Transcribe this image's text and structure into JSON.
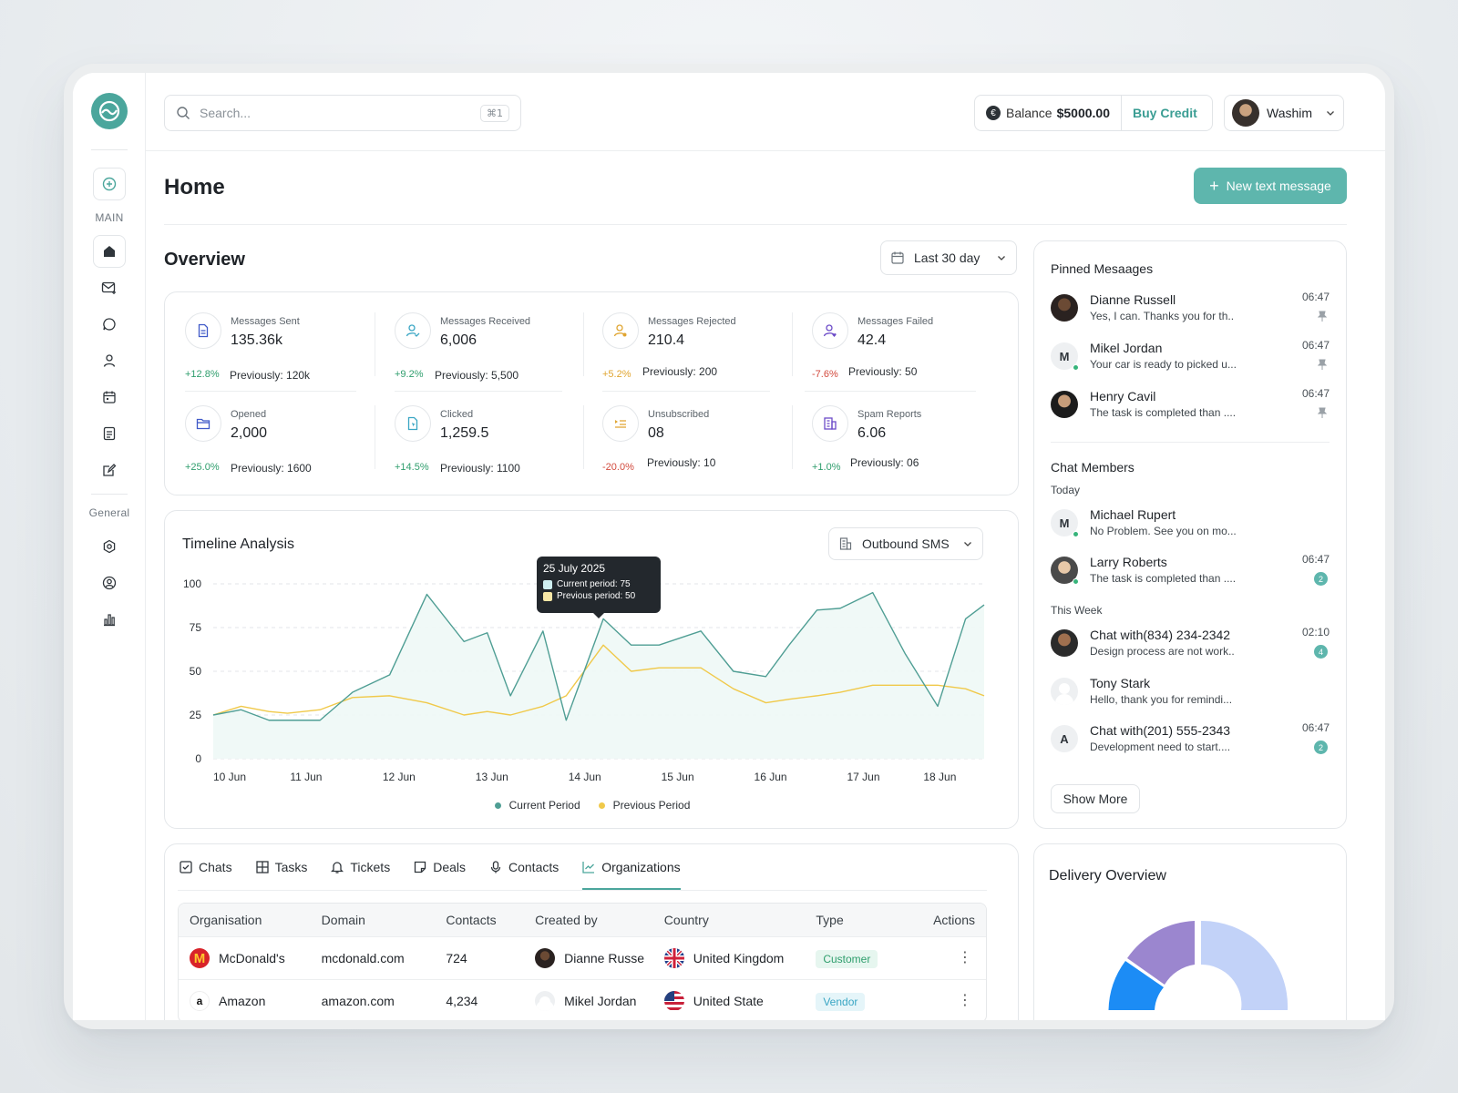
{
  "search": {
    "placeholder": "Search...",
    "shortcut": "⌘1"
  },
  "header": {
    "balance_label": "Balance",
    "balance_value": "$5000.00",
    "buy_credit": "Buy Credit",
    "user_name": "Washim"
  },
  "sidebar": {
    "main_label": "MAIN",
    "general_label": "General"
  },
  "page": {
    "title": "Home",
    "new_message": "New text message"
  },
  "overview": {
    "title": "Overview",
    "range": "Last 30 day",
    "stats": [
      {
        "label": "Messages Sent",
        "value": "135.36k",
        "change": "+12.8%",
        "trend": "pos",
        "previous": "Previously: 120k"
      },
      {
        "label": "Messages Received",
        "value": "6,006",
        "change": "+9.2%",
        "trend": "pos",
        "previous": "Previously: 5,500"
      },
      {
        "label": "Messages Rejected",
        "value": "210.4",
        "change": "+5.2%",
        "trend": "warn",
        "previous": "Previously: 200"
      },
      {
        "label": "Messages Failed",
        "value": "42.4",
        "change": "-7.6%",
        "trend": "neg",
        "previous": "Previously: 50"
      },
      {
        "label": "Opened",
        "value": "2,000",
        "change": "+25.0%",
        "trend": "pos",
        "previous": "Previously: 1600"
      },
      {
        "label": "Clicked",
        "value": "1,259.5",
        "change": "+14.5%",
        "trend": "pos",
        "previous": "Previously: 1100"
      },
      {
        "label": "Unsubscribed",
        "value": "08",
        "change": "-20.0%",
        "trend": "neg",
        "previous": "Previously: 10"
      },
      {
        "label": "Spam Reports",
        "value": "6.06",
        "change": "+1.0%",
        "trend": "pos",
        "previous": "Previously: 06"
      }
    ]
  },
  "timeline": {
    "title": "Timeline Analysis",
    "filter": "Outbound SMS",
    "tooltip": {
      "date": "25 July 2025",
      "current": "Current period: 75",
      "previous": "Previous period: 50"
    },
    "legend": {
      "current": "Current Period",
      "previous": "Previous Period"
    }
  },
  "chart_data": {
    "type": "area",
    "categories": [
      "10 Jun",
      "11 Jun",
      "12 Jun",
      "13 Jun",
      "14 Jun",
      "15 Jun",
      "16 Jun",
      "17 Jun",
      "18 Jun"
    ],
    "yticks": [
      "100",
      "75",
      "50",
      "25",
      "0"
    ],
    "ylim": [
      0,
      100
    ],
    "xlim": [
      0,
      8.3
    ],
    "series": [
      {
        "name": "Current Period",
        "color": "#4f9e94",
        "x": [
          0,
          0.3,
          0.6,
          0.8,
          1.15,
          1.5,
          1.9,
          2.3,
          2.7,
          2.95,
          3.2,
          3.55,
          3.8,
          4.2,
          4.5,
          4.8,
          5.25,
          5.6,
          5.95,
          6.2,
          6.5,
          6.75,
          7.1,
          7.45,
          7.8,
          8.1,
          8.3
        ],
        "y": [
          25,
          28,
          22,
          22,
          22,
          38,
          48,
          94,
          67,
          72,
          36,
          73,
          22,
          80,
          65,
          65,
          73,
          50,
          47,
          65,
          85,
          86,
          95,
          60,
          30,
          80,
          88
        ]
      },
      {
        "name": "Previous Period",
        "color": "#f0c94a",
        "x": [
          0,
          0.3,
          0.6,
          0.8,
          1.15,
          1.5,
          1.9,
          2.3,
          2.7,
          2.95,
          3.2,
          3.55,
          3.8,
          4.2,
          4.5,
          4.8,
          5.25,
          5.6,
          5.95,
          6.2,
          6.5,
          6.75,
          7.1,
          7.45,
          7.8,
          8.1,
          8.3
        ],
        "y": [
          25,
          30,
          27,
          26,
          28,
          35,
          36,
          32,
          25,
          27,
          25,
          30,
          36,
          65,
          50,
          52,
          52,
          40,
          32,
          34,
          36,
          38,
          42,
          42,
          42,
          40,
          36
        ]
      }
    ]
  },
  "tabs": [
    {
      "label": "Chats",
      "icon": "checkbox-icon"
    },
    {
      "label": "Tasks",
      "icon": "grid-icon"
    },
    {
      "label": "Tickets",
      "icon": "bell-icon"
    },
    {
      "label": "Deals",
      "icon": "note-icon"
    },
    {
      "label": "Contacts",
      "icon": "mic-icon"
    },
    {
      "label": "Organizations",
      "icon": "chart-line-icon",
      "active": true
    }
  ],
  "table": {
    "headers": [
      "Organisation",
      "Domain",
      "Contacts",
      "Created by",
      "Country",
      "Type",
      "Actions"
    ],
    "rows": [
      {
        "org": "McDonald's",
        "domain": "mcdonald.com",
        "contacts": "724",
        "created_by": "Dianne Russe",
        "country": "United Kingdom",
        "type": "Customer"
      },
      {
        "org": "Amazon",
        "domain": "amazon.com",
        "contacts": "4,234",
        "created_by": "Mikel Jordan",
        "country": "United State",
        "type": "Vendor"
      }
    ]
  },
  "pinned": {
    "title": "Pinned Mesaages",
    "items": [
      {
        "name": "Dianne Russell",
        "text": "Yes, I can. Thanks you for th..",
        "time": "06:47"
      },
      {
        "name": "Mikel Jordan",
        "text": "Your car is ready to picked u...",
        "time": "06:47",
        "initial": "M"
      },
      {
        "name": "Henry Cavil",
        "text": "The task is completed than ....",
        "time": "06:47"
      }
    ]
  },
  "chat_members": {
    "title": "Chat Members",
    "today_label": "Today",
    "week_label": "This Week",
    "today": [
      {
        "name": "Michael Rupert",
        "text": "No Problem. See you on mo...",
        "initial": "M"
      },
      {
        "name": "Larry Roberts",
        "text": "The task is completed than ....",
        "time": "06:47",
        "count": "2"
      }
    ],
    "week": [
      {
        "name": "Chat with(834) 234-2342",
        "text": "Design process are not work..",
        "time": "02:10",
        "count": "4"
      },
      {
        "name": "Tony Stark",
        "text": "Hello, thank you for remindi..."
      },
      {
        "name": "Chat with(201) 555-2343",
        "text": "Development need to start....",
        "time": "06:47",
        "count": "2",
        "initial": "A"
      }
    ],
    "show_more": "Show More"
  },
  "delivery": {
    "title": "Delivery Overview",
    "segments": [
      {
        "color": "#1c8cf5"
      },
      {
        "color": "#9b86cf"
      },
      {
        "color": "#c2d2f8"
      }
    ]
  }
}
